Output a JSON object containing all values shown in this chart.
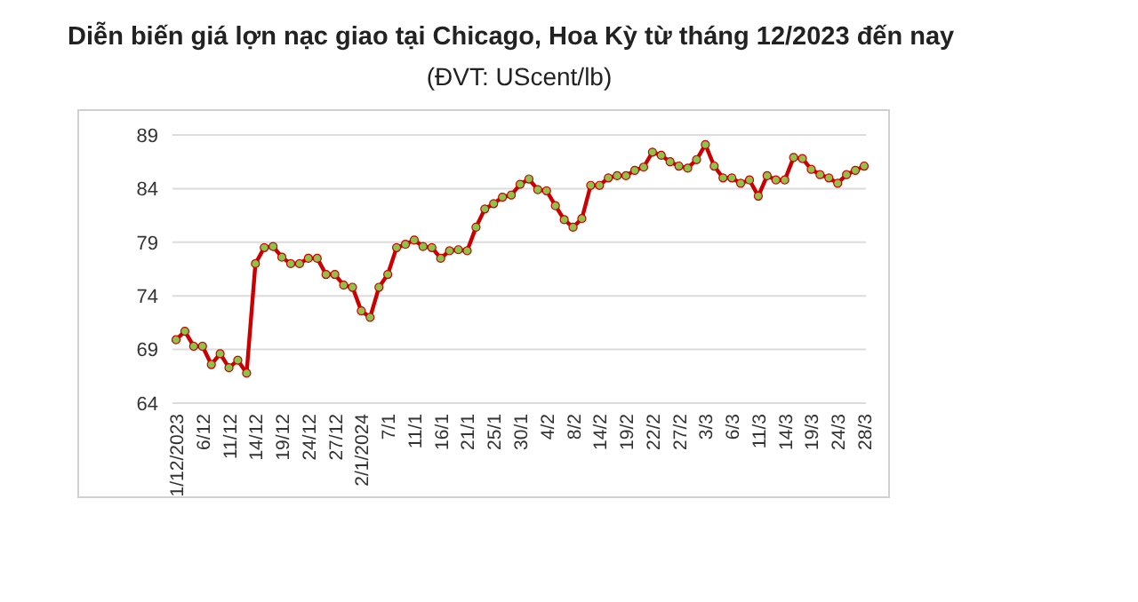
{
  "chart_data": {
    "type": "line",
    "title": "Diễn biến giá lợn nạc giao tại Chicago, Hoa Kỳ từ tháng 12/2023 đến nay",
    "subtitle": "(ĐVT: UScent/lb)",
    "categories": [
      "1/12/2023",
      null,
      null,
      "6/12",
      null,
      null,
      "11/12",
      null,
      null,
      "14/12",
      null,
      null,
      "19/12",
      null,
      null,
      "24/12",
      null,
      null,
      "27/12",
      null,
      null,
      "2/1/2024",
      null,
      null,
      "7/1",
      null,
      null,
      "11/1",
      null,
      null,
      "16/1",
      null,
      null,
      "21/1",
      null,
      null,
      "25/1",
      null,
      null,
      "30/1",
      null,
      null,
      "4/2",
      null,
      null,
      "8/2",
      null,
      null,
      "14/2",
      null,
      null,
      "19/2",
      null,
      null,
      "22/2",
      null,
      null,
      "27/2",
      null,
      null,
      "3/3",
      null,
      null,
      "6/3",
      null,
      null,
      "11/3",
      null,
      null,
      "14/3",
      null,
      null,
      "19/3",
      null,
      null,
      "24/3",
      null,
      null,
      "28/3"
    ],
    "series": [
      {
        "color": "#cc0000",
        "values": [
          69.9,
          70.7,
          69.3,
          69.3,
          67.6,
          68.6,
          67.3,
          68.0,
          66.8,
          77.0,
          78.5,
          78.6,
          77.6,
          77.0,
          77.0,
          77.5,
          77.5,
          76.0,
          76.0,
          75.0,
          74.8,
          72.6,
          72.0,
          74.8,
          76.0,
          78.5,
          78.8,
          79.2,
          78.6,
          78.5,
          77.5,
          78.2,
          78.3,
          78.2,
          80.4,
          82.1,
          82.6,
          83.2,
          83.4,
          84.4,
          84.9,
          83.9,
          83.8,
          82.4,
          81.1,
          80.4,
          81.2,
          84.3,
          84.3,
          85.0,
          85.2,
          85.2,
          85.7,
          86.0,
          87.4,
          87.1,
          86.5,
          86.1,
          85.9,
          86.7,
          88.1,
          86.1,
          85.0,
          85.0,
          84.5,
          84.8,
          83.3,
          85.2,
          84.8,
          84.8,
          86.9,
          86.8,
          85.8,
          85.3,
          85.0,
          84.5,
          85.3,
          85.7,
          86.1
        ]
      }
    ],
    "ylim": [
      64,
      89
    ],
    "yticks": [
      64,
      69,
      74,
      79,
      84,
      89
    ],
    "grid": "y",
    "marker": "circle",
    "line_style": "solid"
  }
}
